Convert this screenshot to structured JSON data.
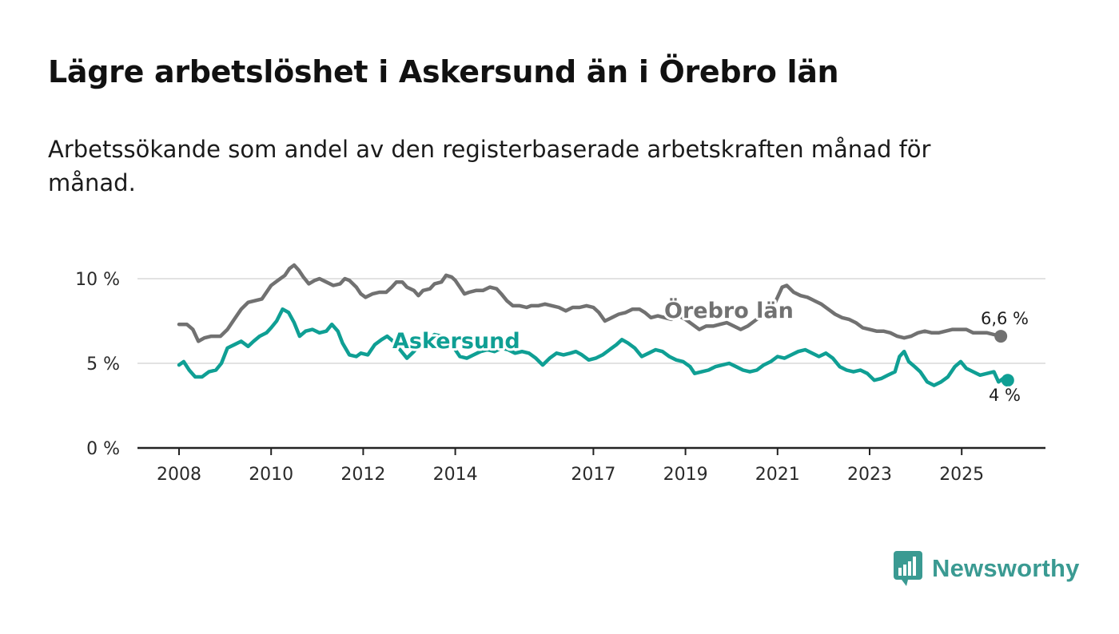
{
  "title": "Lägre arbetslöshet i Askersund än i Örebro län",
  "subtitle": "Arbetssökande som andel av den registerbaserade arbetskraften månad för månad.",
  "brand": {
    "name": "Newsworthy"
  },
  "colors": {
    "orebro": "#717171",
    "askersund": "#0f9f94",
    "grid": "#d9d9d9",
    "axis": "#222222"
  },
  "chart_data": {
    "type": "line",
    "title": "Lägre arbetslöshet i Askersund än i Örebro län",
    "xlabel": "",
    "ylabel": "",
    "xlim": [
      2008,
      2026.1
    ],
    "ylim": [
      0,
      10
    ],
    "x_ticks": [
      2008,
      2010,
      2012,
      2014,
      2017,
      2019,
      2021,
      2023,
      2025
    ],
    "x_tick_labels": [
      "2008",
      "2010",
      "2012",
      "2014",
      "2017",
      "2019",
      "2021",
      "2023",
      "2025"
    ],
    "y_ticks": [
      0,
      5,
      10
    ],
    "y_tick_labels": [
      "0 %",
      "5 %",
      "10 %"
    ],
    "series": [
      {
        "name": "Örebro län",
        "label": "Örebro län",
        "end_label": "6,6 %",
        "points": [
          [
            2008.0,
            7.3
          ],
          [
            2008.17,
            7.3
          ],
          [
            2008.3,
            7.0
          ],
          [
            2008.42,
            6.3
          ],
          [
            2008.55,
            6.5
          ],
          [
            2008.7,
            6.6
          ],
          [
            2008.9,
            6.6
          ],
          [
            2009.05,
            7.0
          ],
          [
            2009.2,
            7.6
          ],
          [
            2009.35,
            8.2
          ],
          [
            2009.5,
            8.6
          ],
          [
            2009.65,
            8.7
          ],
          [
            2009.8,
            8.8
          ],
          [
            2009.9,
            9.2
          ],
          [
            2010.0,
            9.6
          ],
          [
            2010.15,
            9.9
          ],
          [
            2010.3,
            10.2
          ],
          [
            2010.4,
            10.6
          ],
          [
            2010.5,
            10.8
          ],
          [
            2010.6,
            10.5
          ],
          [
            2010.7,
            10.1
          ],
          [
            2010.82,
            9.7
          ],
          [
            2010.95,
            9.9
          ],
          [
            2011.05,
            10.0
          ],
          [
            2011.2,
            9.8
          ],
          [
            2011.35,
            9.6
          ],
          [
            2011.5,
            9.7
          ],
          [
            2011.6,
            10.0
          ],
          [
            2011.7,
            9.9
          ],
          [
            2011.85,
            9.5
          ],
          [
            2011.95,
            9.1
          ],
          [
            2012.05,
            8.9
          ],
          [
            2012.2,
            9.1
          ],
          [
            2012.35,
            9.2
          ],
          [
            2012.5,
            9.2
          ],
          [
            2012.62,
            9.5
          ],
          [
            2012.72,
            9.8
          ],
          [
            2012.85,
            9.8
          ],
          [
            2012.95,
            9.5
          ],
          [
            2013.1,
            9.3
          ],
          [
            2013.2,
            9.0
          ],
          [
            2013.3,
            9.3
          ],
          [
            2013.45,
            9.4
          ],
          [
            2013.55,
            9.7
          ],
          [
            2013.7,
            9.8
          ],
          [
            2013.8,
            10.2
          ],
          [
            2013.92,
            10.1
          ],
          [
            2014.0,
            9.9
          ],
          [
            2014.1,
            9.5
          ],
          [
            2014.2,
            9.1
          ],
          [
            2014.3,
            9.2
          ],
          [
            2014.45,
            9.3
          ],
          [
            2014.6,
            9.3
          ],
          [
            2014.75,
            9.5
          ],
          [
            2014.9,
            9.4
          ],
          [
            2015.0,
            9.1
          ],
          [
            2015.12,
            8.7
          ],
          [
            2015.25,
            8.4
          ],
          [
            2015.4,
            8.4
          ],
          [
            2015.55,
            8.3
          ],
          [
            2015.65,
            8.4
          ],
          [
            2015.8,
            8.4
          ],
          [
            2015.95,
            8.5
          ],
          [
            2016.1,
            8.4
          ],
          [
            2016.25,
            8.3
          ],
          [
            2016.4,
            8.1
          ],
          [
            2016.55,
            8.3
          ],
          [
            2016.7,
            8.3
          ],
          [
            2016.85,
            8.4
          ],
          [
            2017.0,
            8.3
          ],
          [
            2017.12,
            8.0
          ],
          [
            2017.25,
            7.5
          ],
          [
            2017.4,
            7.7
          ],
          [
            2017.55,
            7.9
          ],
          [
            2017.7,
            8.0
          ],
          [
            2017.85,
            8.2
          ],
          [
            2018.0,
            8.2
          ],
          [
            2018.12,
            8.0
          ],
          [
            2018.25,
            7.7
          ],
          [
            2018.4,
            7.8
          ],
          [
            2018.55,
            7.7
          ],
          [
            2018.7,
            7.6
          ],
          [
            2018.85,
            7.8
          ],
          [
            2019.0,
            7.6
          ],
          [
            2019.15,
            7.3
          ],
          [
            2019.3,
            7.0
          ],
          [
            2019.45,
            7.2
          ],
          [
            2019.6,
            7.2
          ],
          [
            2019.75,
            7.3
          ],
          [
            2019.9,
            7.4
          ],
          [
            2020.05,
            7.2
          ],
          [
            2020.2,
            7.0
          ],
          [
            2020.35,
            7.2
          ],
          [
            2020.5,
            7.5
          ],
          [
            2020.65,
            7.8
          ],
          [
            2020.8,
            8.2
          ],
          [
            2020.95,
            8.6
          ],
          [
            2021.1,
            9.5
          ],
          [
            2021.2,
            9.6
          ],
          [
            2021.35,
            9.2
          ],
          [
            2021.5,
            9.0
          ],
          [
            2021.65,
            8.9
          ],
          [
            2021.8,
            8.7
          ],
          [
            2021.95,
            8.5
          ],
          [
            2022.1,
            8.2
          ],
          [
            2022.25,
            7.9
          ],
          [
            2022.4,
            7.7
          ],
          [
            2022.55,
            7.6
          ],
          [
            2022.7,
            7.4
          ],
          [
            2022.85,
            7.1
          ],
          [
            2023.0,
            7.0
          ],
          [
            2023.15,
            6.9
          ],
          [
            2023.3,
            6.9
          ],
          [
            2023.45,
            6.8
          ],
          [
            2023.6,
            6.6
          ],
          [
            2023.75,
            6.5
          ],
          [
            2023.9,
            6.6
          ],
          [
            2024.05,
            6.8
          ],
          [
            2024.2,
            6.9
          ],
          [
            2024.35,
            6.8
          ],
          [
            2024.5,
            6.8
          ],
          [
            2024.65,
            6.9
          ],
          [
            2024.8,
            7.0
          ],
          [
            2024.95,
            7.0
          ],
          [
            2025.1,
            7.0
          ],
          [
            2025.25,
            6.8
          ],
          [
            2025.4,
            6.8
          ],
          [
            2025.55,
            6.8
          ],
          [
            2025.7,
            6.7
          ],
          [
            2025.85,
            6.6
          ]
        ]
      },
      {
        "name": "Askersund",
        "label": "Askersund",
        "end_label": "4 %",
        "points": [
          [
            2008.0,
            4.9
          ],
          [
            2008.1,
            5.1
          ],
          [
            2008.22,
            4.6
          ],
          [
            2008.35,
            4.2
          ],
          [
            2008.5,
            4.2
          ],
          [
            2008.65,
            4.5
          ],
          [
            2008.8,
            4.6
          ],
          [
            2008.92,
            5.0
          ],
          [
            2009.05,
            5.9
          ],
          [
            2009.2,
            6.1
          ],
          [
            2009.35,
            6.3
          ],
          [
            2009.5,
            6.0
          ],
          [
            2009.62,
            6.3
          ],
          [
            2009.75,
            6.6
          ],
          [
            2009.9,
            6.8
          ],
          [
            2010.0,
            7.1
          ],
          [
            2010.12,
            7.5
          ],
          [
            2010.25,
            8.2
          ],
          [
            2010.38,
            8.0
          ],
          [
            2010.5,
            7.4
          ],
          [
            2010.62,
            6.6
          ],
          [
            2010.75,
            6.9
          ],
          [
            2010.9,
            7.0
          ],
          [
            2011.05,
            6.8
          ],
          [
            2011.2,
            6.9
          ],
          [
            2011.32,
            7.3
          ],
          [
            2011.45,
            6.9
          ],
          [
            2011.55,
            6.2
          ],
          [
            2011.7,
            5.5
          ],
          [
            2011.85,
            5.4
          ],
          [
            2011.95,
            5.6
          ],
          [
            2012.1,
            5.5
          ],
          [
            2012.25,
            6.1
          ],
          [
            2012.4,
            6.4
          ],
          [
            2012.52,
            6.6
          ],
          [
            2012.65,
            6.3
          ],
          [
            2012.8,
            5.8
          ],
          [
            2012.95,
            5.3
          ],
          [
            2013.1,
            5.7
          ],
          [
            2013.25,
            6.2
          ],
          [
            2013.4,
            6.4
          ],
          [
            2013.55,
            6.7
          ],
          [
            2013.7,
            6.6
          ],
          [
            2013.85,
            6.4
          ],
          [
            2013.95,
            6.0
          ],
          [
            2014.1,
            5.4
          ],
          [
            2014.25,
            5.3
          ],
          [
            2014.4,
            5.5
          ],
          [
            2014.55,
            5.7
          ],
          [
            2014.7,
            5.8
          ],
          [
            2014.85,
            5.7
          ],
          [
            2015.0,
            5.9
          ],
          [
            2015.15,
            5.8
          ],
          [
            2015.3,
            5.6
          ],
          [
            2015.45,
            5.7
          ],
          [
            2015.6,
            5.6
          ],
          [
            2015.75,
            5.3
          ],
          [
            2015.9,
            4.9
          ],
          [
            2016.05,
            5.3
          ],
          [
            2016.2,
            5.6
          ],
          [
            2016.35,
            5.5
          ],
          [
            2016.5,
            5.6
          ],
          [
            2016.62,
            5.7
          ],
          [
            2016.75,
            5.5
          ],
          [
            2016.9,
            5.2
          ],
          [
            2017.05,
            5.3
          ],
          [
            2017.2,
            5.5
          ],
          [
            2017.35,
            5.8
          ],
          [
            2017.5,
            6.1
          ],
          [
            2017.62,
            6.4
          ],
          [
            2017.75,
            6.2
          ],
          [
            2017.9,
            5.9
          ],
          [
            2018.05,
            5.4
          ],
          [
            2018.2,
            5.6
          ],
          [
            2018.35,
            5.8
          ],
          [
            2018.5,
            5.7
          ],
          [
            2018.65,
            5.4
          ],
          [
            2018.8,
            5.2
          ],
          [
            2018.95,
            5.1
          ],
          [
            2019.1,
            4.8
          ],
          [
            2019.2,
            4.4
          ],
          [
            2019.35,
            4.5
          ],
          [
            2019.5,
            4.6
          ],
          [
            2019.65,
            4.8
          ],
          [
            2019.8,
            4.9
          ],
          [
            2019.95,
            5.0
          ],
          [
            2020.1,
            4.8
          ],
          [
            2020.25,
            4.6
          ],
          [
            2020.4,
            4.5
          ],
          [
            2020.55,
            4.6
          ],
          [
            2020.7,
            4.9
          ],
          [
            2020.85,
            5.1
          ],
          [
            2021.0,
            5.4
          ],
          [
            2021.15,
            5.3
          ],
          [
            2021.3,
            5.5
          ],
          [
            2021.45,
            5.7
          ],
          [
            2021.6,
            5.8
          ],
          [
            2021.75,
            5.6
          ],
          [
            2021.9,
            5.4
          ],
          [
            2022.05,
            5.6
          ],
          [
            2022.2,
            5.3
          ],
          [
            2022.35,
            4.8
          ],
          [
            2022.5,
            4.6
          ],
          [
            2022.65,
            4.5
          ],
          [
            2022.8,
            4.6
          ],
          [
            2022.95,
            4.4
          ],
          [
            2023.1,
            4.0
          ],
          [
            2023.25,
            4.1
          ],
          [
            2023.4,
            4.3
          ],
          [
            2023.55,
            4.5
          ],
          [
            2023.65,
            5.4
          ],
          [
            2023.75,
            5.7
          ],
          [
            2023.85,
            5.1
          ],
          [
            2023.98,
            4.8
          ],
          [
            2024.1,
            4.5
          ],
          [
            2024.25,
            3.9
          ],
          [
            2024.4,
            3.7
          ],
          [
            2024.55,
            3.9
          ],
          [
            2024.7,
            4.2
          ],
          [
            2024.85,
            4.8
          ],
          [
            2024.98,
            5.1
          ],
          [
            2025.1,
            4.7
          ],
          [
            2025.25,
            4.5
          ],
          [
            2025.4,
            4.3
          ],
          [
            2025.55,
            4.4
          ],
          [
            2025.7,
            4.5
          ],
          [
            2025.8,
            3.9
          ],
          [
            2025.9,
            4.1
          ],
          [
            2026.0,
            4.0
          ]
        ]
      }
    ]
  }
}
